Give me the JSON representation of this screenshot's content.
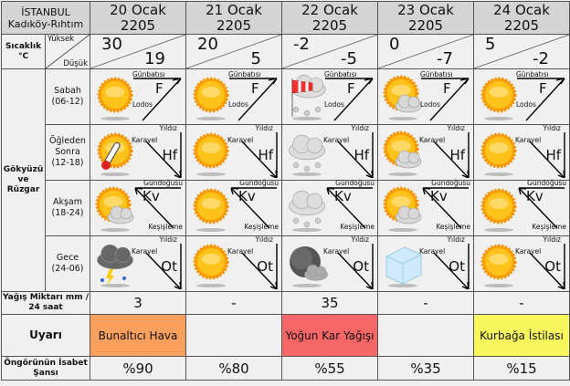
{
  "location": {
    "city": "İSTANBUL",
    "district": "Kadıköy-Rıhtım"
  },
  "days": [
    {
      "date": "20 Ocak",
      "year": "2205",
      "high": "30",
      "low": "19",
      "icons": [
        "sun",
        "sun-thermometer",
        "sun-cloud",
        "thunderstorm"
      ],
      "rain": "3",
      "warning": "Bunaltıcı Hava",
      "warning_color": "#f9a05e",
      "chance": "%90"
    },
    {
      "date": "21 Ocak",
      "year": "2205",
      "high": "20",
      "low": "5",
      "icons": [
        "sun",
        "sun",
        "sun",
        "sun"
      ],
      "rain": "-",
      "warning": "",
      "warning_color": "",
      "chance": "%80"
    },
    {
      "date": "22 Ocak",
      "year": "2205",
      "high": "-2",
      "low": "-5",
      "icons": [
        "windsock-snow",
        "cloud-snow",
        "cloud-snow",
        "moon-cloud"
      ],
      "rain": "35",
      "warning": "Yoğun Kar Yağışı",
      "warning_color": "#f86767",
      "chance": "%55"
    },
    {
      "date": "23 Ocak",
      "year": "2205",
      "high": "0",
      "low": "-7",
      "icons": [
        "sun-cloud",
        "sun-cloud",
        "sun-cloud",
        "ice"
      ],
      "rain": "-",
      "warning": "",
      "warning_color": "",
      "chance": "%35"
    },
    {
      "date": "24 Ocak",
      "year": "2205",
      "high": "5",
      "low": "-2",
      "icons": [
        "sun",
        "sun",
        "sun",
        "sun"
      ],
      "rain": "-",
      "warning": "Kurbağa İstilası",
      "warning_color": "#f8f85e",
      "chance": "%15"
    }
  ],
  "labels": {
    "temp": "Sıcaklık °C",
    "high": "Yüksek",
    "low": "Düşük",
    "sky": "Gökyüzü ve Rüzgar",
    "rain": "Yağış Miktarı mm / 24 saat",
    "warning": "Uyarı",
    "chance": "Öngörünün İsabet Şansı"
  },
  "periods": [
    {
      "name": "Sabah",
      "hours": "(06-12)",
      "wind_a": "Günbatısı",
      "wind_b": "Lodos",
      "code": "F",
      "shape": "sw"
    },
    {
      "name": "Öğleden Sonra",
      "hours": "(12-18)",
      "wind_a": "Yıldız",
      "wind_b": "Karayel",
      "code": "Hf",
      "shape": "nw"
    },
    {
      "name": "Akşam",
      "hours": "(18-24)",
      "wind_a": "Gündoğusu",
      "wind_b": "Keşişleme",
      "code": "Kv",
      "shape": "se"
    },
    {
      "name": "Gece",
      "hours": "(24-06)",
      "wind_a": "Yıldız",
      "wind_b": "Karayel",
      "code": "Ot",
      "shape": "nw"
    }
  ]
}
